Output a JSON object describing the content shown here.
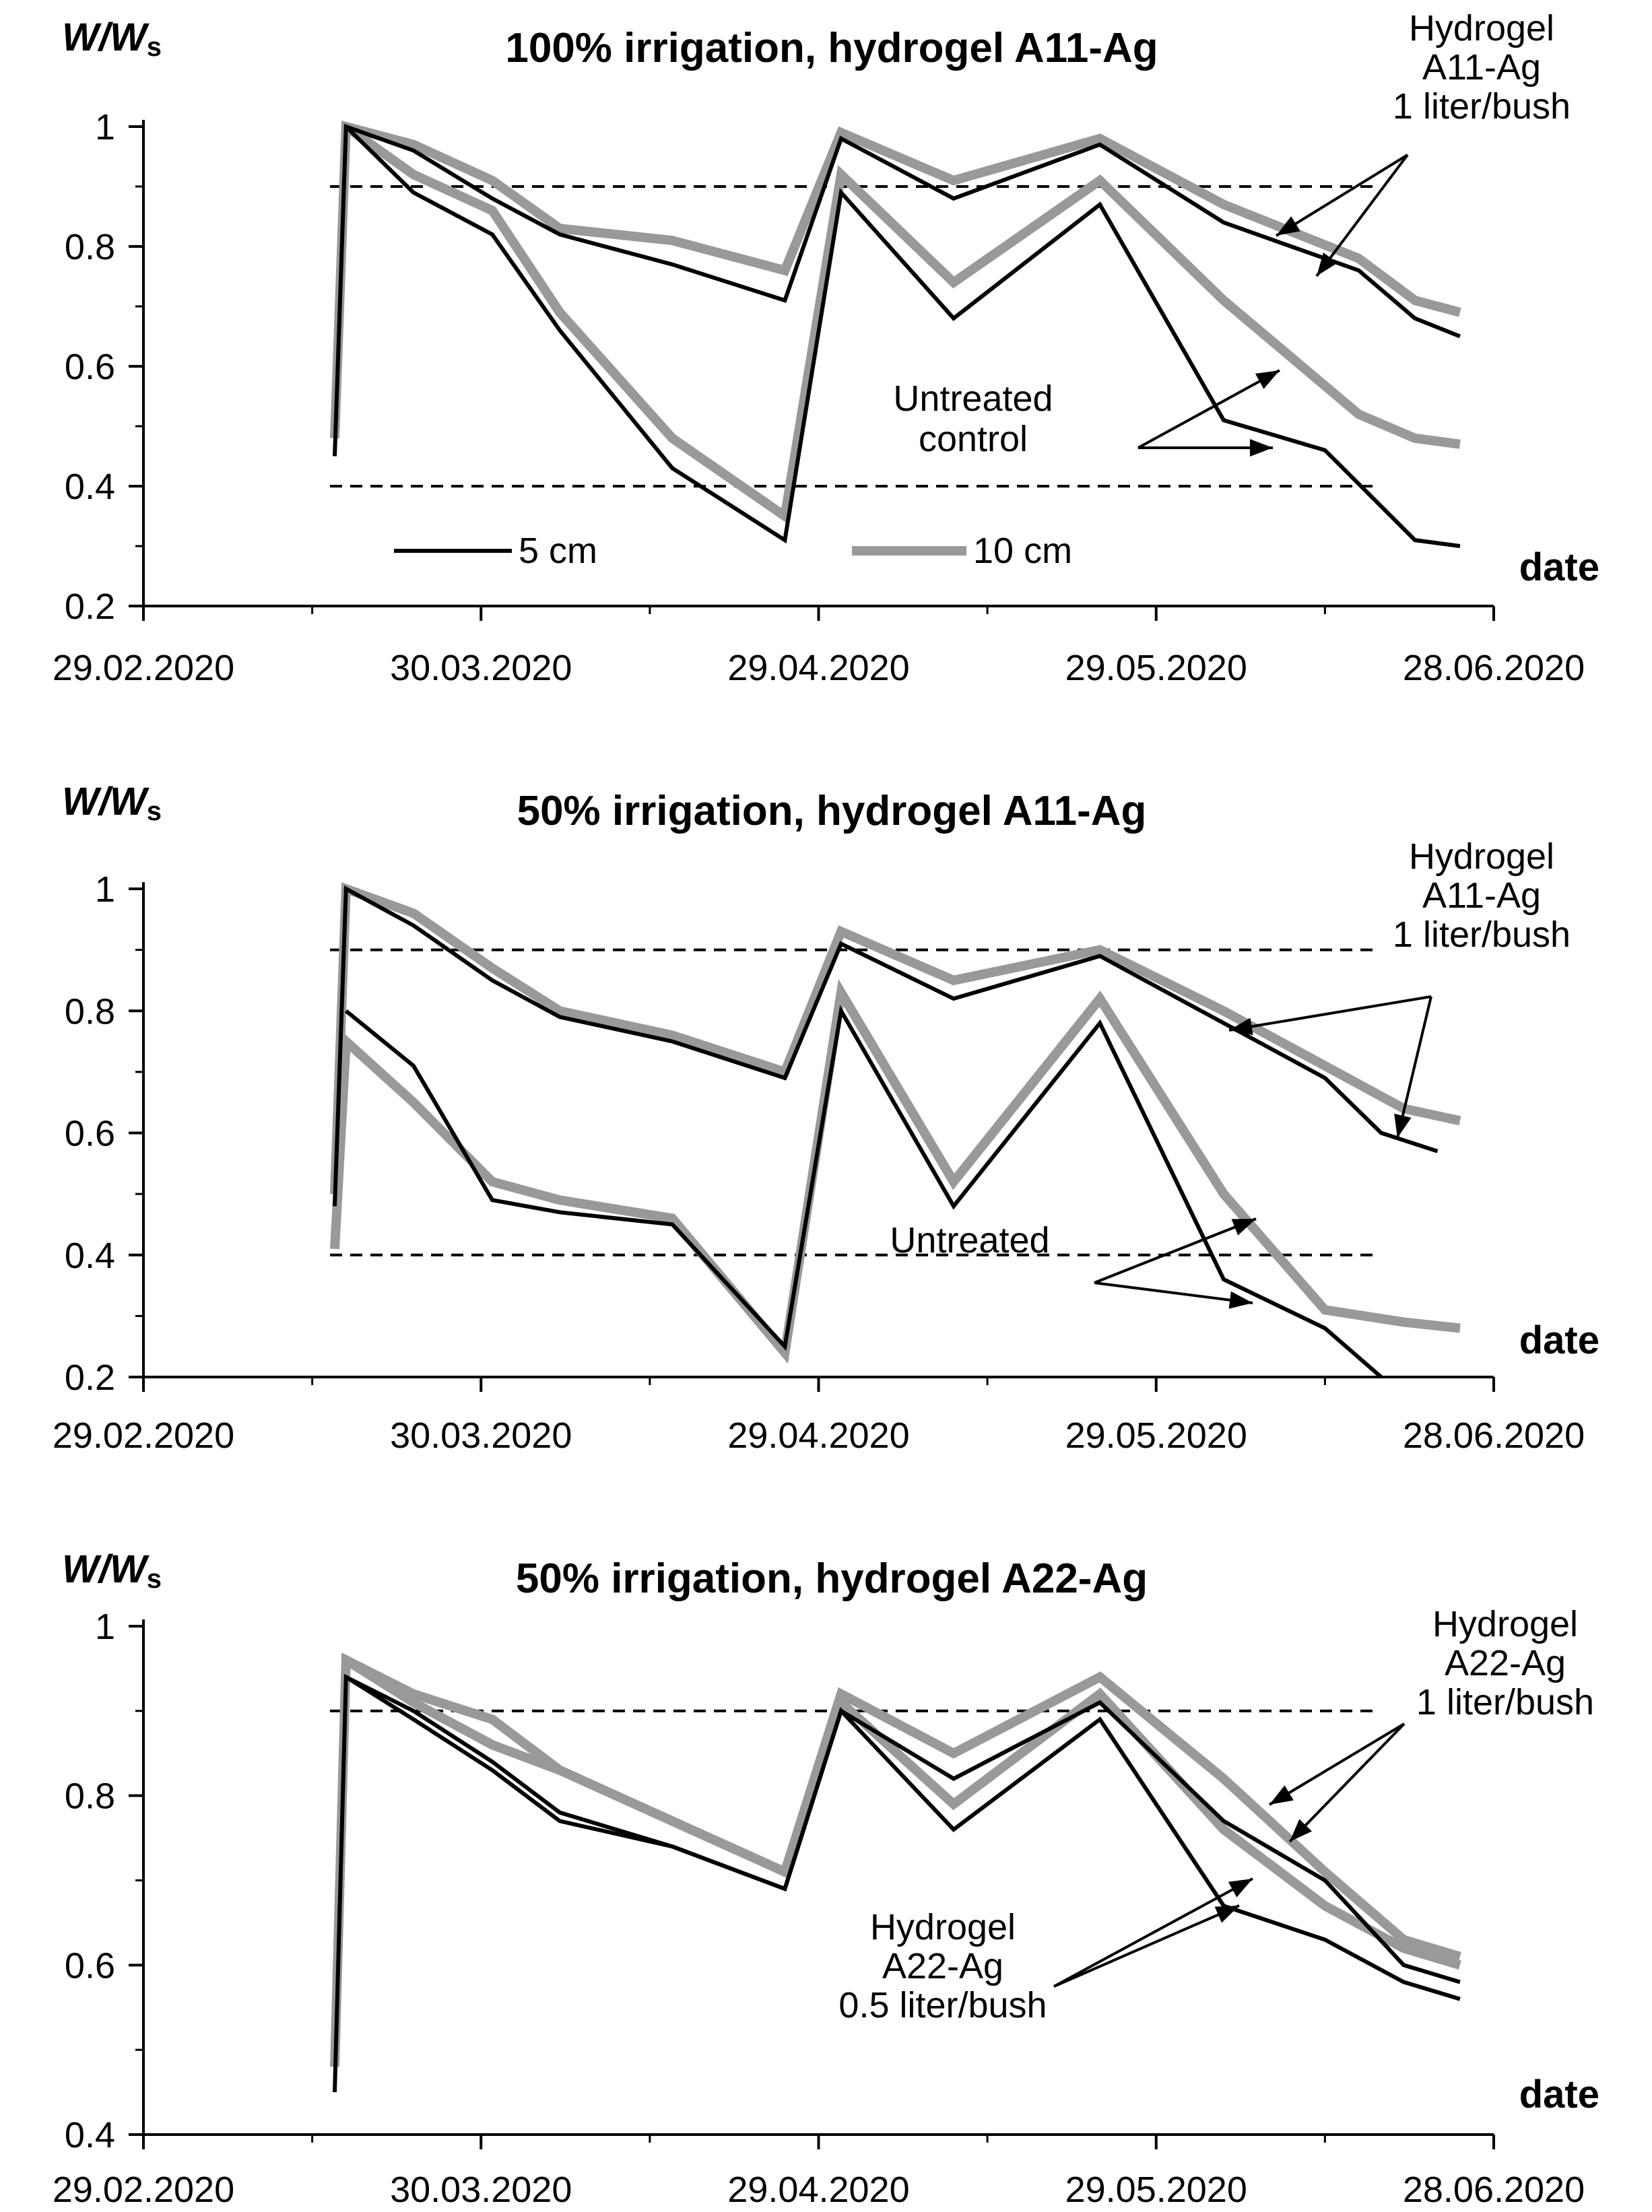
{
  "chart_data": [
    {
      "type": "line",
      "title": "100% irrigation, hydrogel A11-Ag",
      "ylabel": "W/Ws",
      "ylabel_main": "W/W",
      "ylabel_sub": "s",
      "xlabel": "date",
      "ylim": [
        0.2,
        1.0
      ],
      "yticks": [
        0.2,
        0.4,
        0.6,
        0.8,
        1.0
      ],
      "ytick_labels": [
        "0.2",
        "0.4",
        "0.6",
        "0.8",
        "1"
      ],
      "xlim": [
        "2020-02-29",
        "2020-06-28"
      ],
      "xtick_labels": [
        "29.02.2020",
        "30.03.2020",
        "29.04.2020",
        "29.05.2020",
        "28.06.2020"
      ],
      "reference_lines": [
        0.9,
        0.4
      ],
      "legend": {
        "placement": "bottom-center",
        "entries": [
          "5 cm",
          "10 cm"
        ]
      },
      "annotations": [
        {
          "lines": [
            "Hydrogel",
            "A11-Ag",
            "1 liter/bush"
          ]
        },
        {
          "lines": [
            "Untreated",
            "control"
          ]
        }
      ],
      "series": [
        {
          "depth": "5 cm",
          "group": "hydrogel",
          "color": "#000000",
          "x": [
            "2020-03-17",
            "2020-03-18",
            "2020-03-24",
            "2020-03-31",
            "2020-04-06",
            "2020-04-16",
            "2020-04-26",
            "2020-05-01",
            "2020-05-11",
            "2020-05-24",
            "2020-06-04",
            "2020-06-16",
            "2020-06-21",
            "2020-06-25"
          ],
          "y": [
            0.45,
            1.0,
            0.96,
            0.88,
            0.82,
            0.77,
            0.71,
            0.98,
            0.88,
            0.97,
            0.84,
            0.76,
            0.68,
            0.65
          ]
        },
        {
          "depth": "5 cm",
          "group": "control",
          "color": "#000000",
          "x": [
            "2020-03-18",
            "2020-03-24",
            "2020-03-31",
            "2020-04-06",
            "2020-04-16",
            "2020-04-26",
            "2020-05-01",
            "2020-05-11",
            "2020-05-24",
            "2020-06-04",
            "2020-06-13",
            "2020-06-21",
            "2020-06-25"
          ],
          "y": [
            1.0,
            0.89,
            0.82,
            0.66,
            0.43,
            0.31,
            0.89,
            0.68,
            0.87,
            0.51,
            0.46,
            0.31,
            0.3
          ]
        },
        {
          "depth": "10 cm",
          "group": "hydrogel",
          "color": "#999999",
          "x": [
            "2020-03-17",
            "2020-03-18",
            "2020-03-24",
            "2020-03-31",
            "2020-04-06",
            "2020-04-16",
            "2020-04-26",
            "2020-05-01",
            "2020-05-11",
            "2020-05-24",
            "2020-06-04",
            "2020-06-16",
            "2020-06-21",
            "2020-06-25"
          ],
          "y": [
            0.48,
            1.0,
            0.97,
            0.91,
            0.83,
            0.81,
            0.76,
            0.99,
            0.91,
            0.98,
            0.87,
            0.78,
            0.71,
            0.69
          ]
        },
        {
          "depth": "10 cm",
          "group": "control",
          "color": "#999999",
          "x": [
            "2020-03-18",
            "2020-03-24",
            "2020-03-31",
            "2020-04-06",
            "2020-04-16",
            "2020-04-26",
            "2020-05-01",
            "2020-05-11",
            "2020-05-24",
            "2020-06-04",
            "2020-06-16",
            "2020-06-21",
            "2020-06-25"
          ],
          "y": [
            1.0,
            0.92,
            0.86,
            0.69,
            0.48,
            0.35,
            0.92,
            0.74,
            0.91,
            0.71,
            0.52,
            0.48,
            0.47
          ]
        }
      ]
    },
    {
      "type": "line",
      "title": "50% irrigation, hydrogel A11-Ag",
      "ylabel": "W/Ws",
      "ylabel_main": "W/W",
      "ylabel_sub": "s",
      "xlabel": "date",
      "ylim": [
        0.2,
        1.0
      ],
      "yticks": [
        0.2,
        0.4,
        0.6,
        0.8,
        1.0
      ],
      "ytick_labels": [
        "0.2",
        "0.4",
        "0.6",
        "0.8",
        "1"
      ],
      "xlim": [
        "2020-02-29",
        "2020-06-28"
      ],
      "xtick_labels": [
        "29.02.2020",
        "30.03.2020",
        "29.04.2020",
        "29.05.2020",
        "28.06.2020"
      ],
      "reference_lines": [
        0.9,
        0.4
      ],
      "annotations": [
        {
          "lines": [
            "Hydrogel",
            "A11-Ag",
            "1 liter/bush"
          ]
        },
        {
          "lines": [
            "Untreated"
          ]
        }
      ],
      "series": [
        {
          "depth": "5 cm",
          "group": "hydrogel",
          "color": "#000000",
          "x": [
            "2020-03-17",
            "2020-03-18",
            "2020-03-24",
            "2020-03-31",
            "2020-04-06",
            "2020-04-16",
            "2020-04-26",
            "2020-05-01",
            "2020-05-11",
            "2020-05-24",
            "2020-06-04",
            "2020-06-13",
            "2020-06-18",
            "2020-06-23"
          ],
          "y": [
            0.48,
            1.0,
            0.94,
            0.85,
            0.79,
            0.75,
            0.69,
            0.91,
            0.82,
            0.89,
            0.78,
            0.69,
            0.6,
            0.57
          ]
        },
        {
          "depth": "5 cm",
          "group": "control",
          "color": "#000000",
          "x": [
            "2020-03-18",
            "2020-03-24",
            "2020-03-31",
            "2020-04-06",
            "2020-04-16",
            "2020-04-26",
            "2020-05-01",
            "2020-05-11",
            "2020-05-24",
            "2020-06-04",
            "2020-06-13",
            "2020-06-18"
          ],
          "y": [
            0.8,
            0.71,
            0.49,
            0.47,
            0.45,
            0.25,
            0.8,
            0.48,
            0.78,
            0.36,
            0.28,
            0.2
          ]
        },
        {
          "depth": "10 cm",
          "group": "hydrogel",
          "color": "#999999",
          "x": [
            "2020-03-17",
            "2020-03-18",
            "2020-03-24",
            "2020-03-31",
            "2020-04-06",
            "2020-04-16",
            "2020-04-26",
            "2020-05-01",
            "2020-05-11",
            "2020-05-24",
            "2020-06-04",
            "2020-06-13",
            "2020-06-20",
            "2020-06-25"
          ],
          "y": [
            0.5,
            1.0,
            0.96,
            0.87,
            0.8,
            0.76,
            0.7,
            0.93,
            0.85,
            0.9,
            0.8,
            0.71,
            0.64,
            0.62
          ]
        },
        {
          "depth": "10 cm",
          "group": "control",
          "color": "#999999",
          "x": [
            "2020-03-17",
            "2020-03-18",
            "2020-03-24",
            "2020-03-31",
            "2020-04-06",
            "2020-04-16",
            "2020-04-26",
            "2020-05-01",
            "2020-05-11",
            "2020-05-24",
            "2020-06-04",
            "2020-06-13",
            "2020-06-20",
            "2020-06-25"
          ],
          "y": [
            0.41,
            0.75,
            0.65,
            0.52,
            0.49,
            0.46,
            0.24,
            0.83,
            0.52,
            0.82,
            0.5,
            0.31,
            0.29,
            0.28
          ]
        }
      ]
    },
    {
      "type": "line",
      "title": "50% irrigation, hydrogel A22-Ag",
      "ylabel": "W/Ws",
      "ylabel_main": "W/W",
      "ylabel_sub": "s",
      "xlabel": "date",
      "ylim": [
        0.4,
        1.0
      ],
      "yticks": [
        0.4,
        0.6,
        0.8,
        1.0
      ],
      "ytick_labels": [
        "0.4",
        "0.6",
        "0.8",
        "1"
      ],
      "xlim": [
        "2020-02-29",
        "2020-06-28"
      ],
      "xtick_labels": [
        "29.02.2020",
        "30.03.2020",
        "29.04.2020",
        "29.05.2020",
        "28.06.2020"
      ],
      "reference_lines": [
        0.9
      ],
      "annotations": [
        {
          "lines": [
            "Hydrogel",
            "A22-Ag",
            "1 liter/bush"
          ]
        },
        {
          "lines": [
            "Hydrogel",
            "A22-Ag",
            "0.5 liter/bush"
          ]
        }
      ],
      "series": [
        {
          "depth": "5 cm",
          "group": "1 liter/bush",
          "color": "#000000",
          "x": [
            "2020-03-17",
            "2020-03-18",
            "2020-03-24",
            "2020-03-31",
            "2020-04-06",
            "2020-04-16",
            "2020-04-26",
            "2020-05-01",
            "2020-05-11",
            "2020-05-24",
            "2020-06-04",
            "2020-06-13",
            "2020-06-20",
            "2020-06-25"
          ],
          "y": [
            0.45,
            0.94,
            0.9,
            0.84,
            0.78,
            0.74,
            0.69,
            0.9,
            0.82,
            0.91,
            0.77,
            0.7,
            0.6,
            0.58
          ]
        },
        {
          "depth": "5 cm",
          "group": "0.5 liter/bush",
          "color": "#000000",
          "x": [
            "2020-03-18",
            "2020-03-24",
            "2020-03-31",
            "2020-04-06",
            "2020-04-16",
            "2020-04-26",
            "2020-05-01",
            "2020-05-11",
            "2020-05-24",
            "2020-06-04",
            "2020-06-13",
            "2020-06-20",
            "2020-06-25"
          ],
          "y": [
            0.94,
            0.89,
            0.83,
            0.77,
            0.74,
            0.69,
            0.9,
            0.76,
            0.89,
            0.67,
            0.63,
            0.58,
            0.56
          ]
        },
        {
          "depth": "10 cm",
          "group": "1 liter/bush",
          "color": "#999999",
          "x": [
            "2020-03-17",
            "2020-03-18",
            "2020-03-24",
            "2020-03-31",
            "2020-04-06",
            "2020-04-16",
            "2020-04-26",
            "2020-05-01",
            "2020-05-11",
            "2020-05-24",
            "2020-06-04",
            "2020-06-13",
            "2020-06-20",
            "2020-06-25"
          ],
          "y": [
            0.48,
            0.96,
            0.92,
            0.89,
            0.83,
            0.77,
            0.71,
            0.92,
            0.85,
            0.94,
            0.82,
            0.71,
            0.63,
            0.61
          ]
        },
        {
          "depth": "10 cm",
          "group": "0.5 liter/bush",
          "color": "#999999",
          "x": [
            "2020-03-18",
            "2020-03-24",
            "2020-03-31",
            "2020-04-06",
            "2020-04-16",
            "2020-04-26",
            "2020-05-01",
            "2020-05-11",
            "2020-05-24",
            "2020-06-04",
            "2020-06-13",
            "2020-06-20",
            "2020-06-25"
          ],
          "y": [
            0.96,
            0.91,
            0.86,
            0.83,
            0.77,
            0.71,
            0.91,
            0.79,
            0.92,
            0.76,
            0.67,
            0.62,
            0.6
          ]
        }
      ]
    }
  ]
}
